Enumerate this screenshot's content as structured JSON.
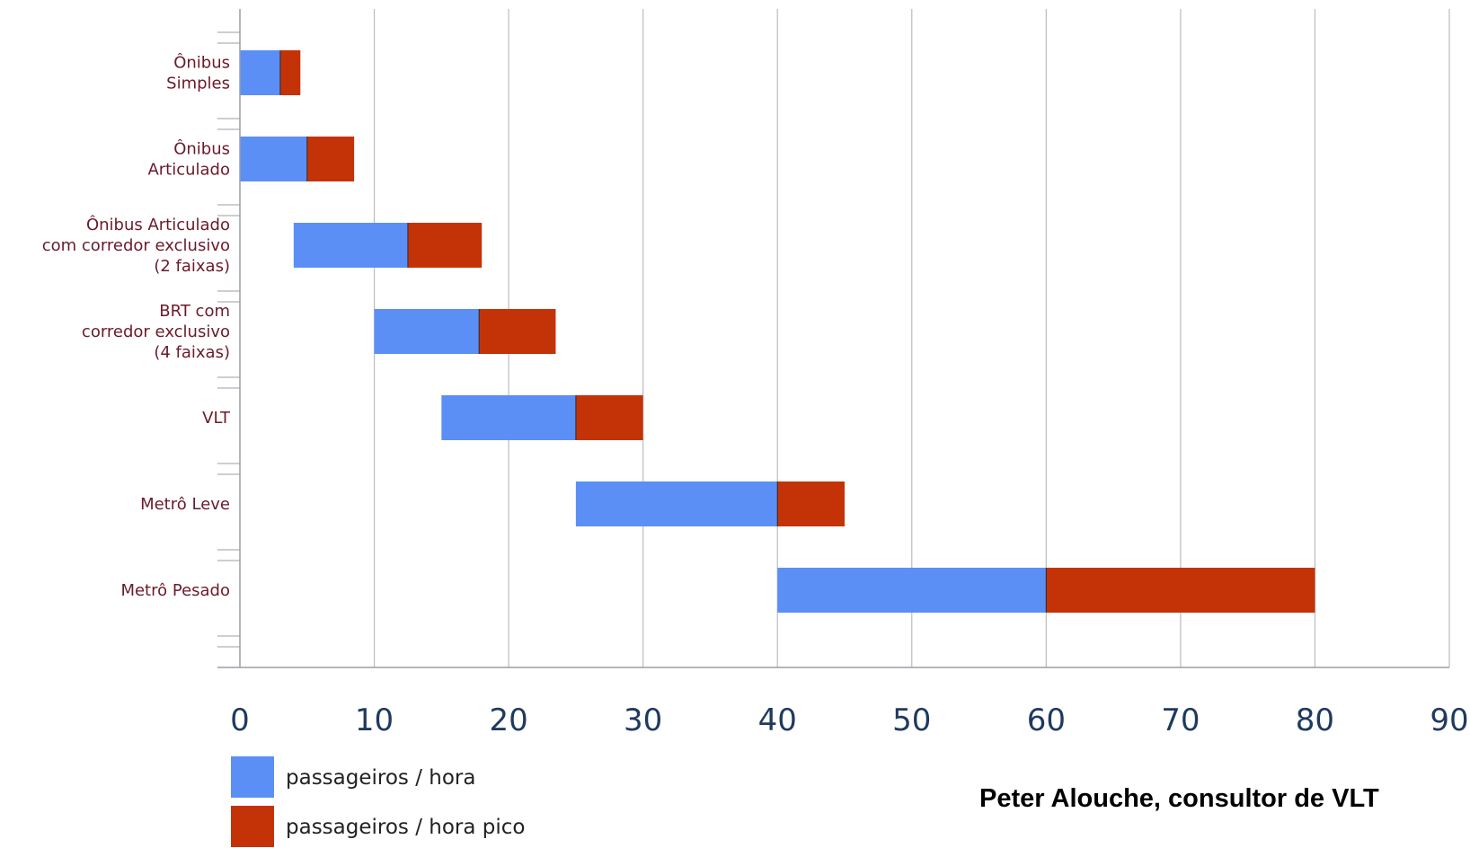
{
  "chart_data": {
    "type": "bar",
    "orientation": "horizontal",
    "stacked": true,
    "categories": [
      [
        "Ônibus",
        "Simples"
      ],
      [
        "Ônibus",
        "Articulado"
      ],
      [
        "Ônibus Articulado",
        "com corredor exclusivo",
        "(2 faixas)"
      ],
      [
        "BRT com",
        "corredor exclusivo",
        "(4 faixas)"
      ],
      [
        "VLT"
      ],
      [
        "Metrô Leve"
      ],
      [
        "Metrô Pesado"
      ]
    ],
    "ranges": [
      {
        "start": 0,
        "mid": 3,
        "end": 4.5
      },
      {
        "start": 0,
        "mid": 5,
        "end": 8.5
      },
      {
        "start": 4,
        "mid": 12.5,
        "end": 18
      },
      {
        "start": 10,
        "mid": 17.8,
        "end": 23.5
      },
      {
        "start": 15,
        "mid": 25,
        "end": 30
      },
      {
        "start": 25,
        "mid": 40,
        "end": 45
      },
      {
        "start": 40,
        "mid": 60,
        "end": 80
      }
    ],
    "series": [
      {
        "name": "passageiros / hora",
        "color": "#5b8ff5"
      },
      {
        "name": "passageiros / hora pico",
        "color": "#c43307"
      }
    ],
    "x_ticks": [
      "0",
      "10",
      "20",
      "30",
      "40",
      "50",
      "60",
      "70",
      "80",
      "90"
    ],
    "xlim": [
      0,
      90
    ],
    "grid": true,
    "legend_position": "bottom-left",
    "title": "",
    "xlabel": "",
    "ylabel": ""
  },
  "credit": "Peter Alouche, consultor de VLT"
}
